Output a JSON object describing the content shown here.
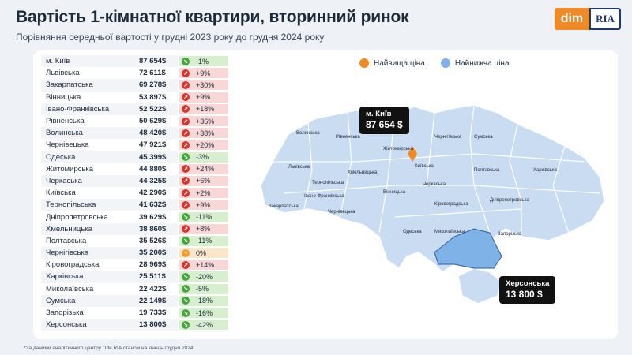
{
  "header": {
    "title": "Вартість 1-кімнатної квартири, вторинний ринок",
    "subtitle": "Порівняння середньої вартості у грудні 2023 року до грудня 2024 року"
  },
  "logo": {
    "dim": "dim",
    "ria": "RIA"
  },
  "legend": {
    "highest": "Найвища ціна",
    "lowest": "Найнижча ціна",
    "highest_color": "#f08a24",
    "lowest_color": "#7fb3e8"
  },
  "table": [
    {
      "name": "м. Київ",
      "price": "87 654$",
      "change": "-1%",
      "dir": "down"
    },
    {
      "name": "Львівська",
      "price": "72 611$",
      "change": "+9%",
      "dir": "up"
    },
    {
      "name": "Закарпатська",
      "price": "69 278$",
      "change": "+30%",
      "dir": "up"
    },
    {
      "name": "Вінницька",
      "price": "53 897$",
      "change": "+9%",
      "dir": "up"
    },
    {
      "name": "Івано-Франківська",
      "price": "52 522$",
      "change": "+18%",
      "dir": "up"
    },
    {
      "name": "Рівненська",
      "price": "50 629$",
      "change": "+36%",
      "dir": "up"
    },
    {
      "name": "Волинська",
      "price": "48 420$",
      "change": "+38%",
      "dir": "up"
    },
    {
      "name": "Чернівецька",
      "price": "47 921$",
      "change": "+20%",
      "dir": "up"
    },
    {
      "name": "Одеська",
      "price": "45 399$",
      "change": "-3%",
      "dir": "down"
    },
    {
      "name": "Житомирська",
      "price": "44 880$",
      "change": "+24%",
      "dir": "up"
    },
    {
      "name": "Черкаська",
      "price": "44 325$",
      "change": "+6%",
      "dir": "up"
    },
    {
      "name": "Київська",
      "price": "42 290$",
      "change": "+2%",
      "dir": "up"
    },
    {
      "name": "Тернопільська",
      "price": "41 632$",
      "change": "+9%",
      "dir": "up"
    },
    {
      "name": "Дніпропетровська",
      "price": "39 629$",
      "change": "-11%",
      "dir": "down"
    },
    {
      "name": "Хмельницька",
      "price": "38 860$",
      "change": "+8%",
      "dir": "up"
    },
    {
      "name": "Полтавська",
      "price": "35 526$",
      "change": "-11%",
      "dir": "down"
    },
    {
      "name": "Чернігівська",
      "price": "35 200$",
      "change": "0%",
      "dir": "flat"
    },
    {
      "name": "Кіровоградська",
      "price": "28 969$",
      "change": "+14%",
      "dir": "up"
    },
    {
      "name": "Харківська",
      "price": "25 511$",
      "change": "-20%",
      "dir": "down"
    },
    {
      "name": "Миколаївська",
      "price": "22 422$",
      "change": "-5%",
      "dir": "down"
    },
    {
      "name": "Сумська",
      "price": "22 149$",
      "change": "-18%",
      "dir": "down"
    },
    {
      "name": "Запорізька",
      "price": "19 733$",
      "change": "-16%",
      "dir": "down"
    },
    {
      "name": "Херсонська",
      "price": "13 800$",
      "change": "-42%",
      "dir": "down"
    }
  ],
  "map": {
    "labels": [
      "Волинська",
      "Рівненська",
      "Житомирська",
      "Чернігівська",
      "Сумська",
      "Львівська",
      "Хмельницька",
      "Київська",
      "Полтавська",
      "Харківська",
      "Тернопільська",
      "Вінницька",
      "Черкаська",
      "Закарпатська",
      "Івано-Франківська",
      "Кіровоградська",
      "Дніпропетровська",
      "Чернівецька",
      "Одеська",
      "Миколаївська",
      "Запорізька"
    ],
    "highest_callout": {
      "name": "м. Київ",
      "price": "87 654 $"
    },
    "lowest_callout": {
      "name": "Херсонська",
      "price": "13 800 $"
    }
  },
  "footnote": "*За даними аналітичного центру DIM.RIA станом на кінець грудня 2024"
}
